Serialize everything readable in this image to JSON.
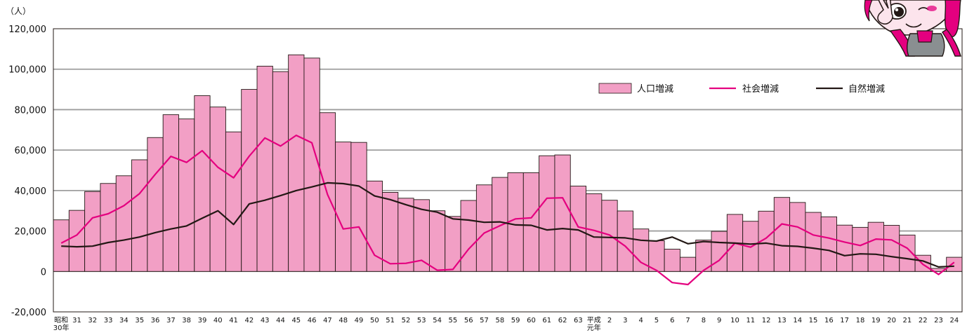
{
  "chart_data": {
    "type": "bar",
    "unit_label": "（人）",
    "y_ticks": [
      "120,000",
      "100,000",
      "80,000",
      "60,000",
      "40,000",
      "20,000",
      "0",
      "-20,000"
    ],
    "ylim": [
      -20000,
      120000
    ],
    "grid": true,
    "legend_position": "top-right",
    "categories": [
      [
        "昭和",
        "30年"
      ],
      [
        "31"
      ],
      [
        "32"
      ],
      [
        "33"
      ],
      [
        "34"
      ],
      [
        "35"
      ],
      [
        "36"
      ],
      [
        "37"
      ],
      [
        "38"
      ],
      [
        "39"
      ],
      [
        "40"
      ],
      [
        "41"
      ],
      [
        "42"
      ],
      [
        "43"
      ],
      [
        "44"
      ],
      [
        "45"
      ],
      [
        "46"
      ],
      [
        "47"
      ],
      [
        "48"
      ],
      [
        "49"
      ],
      [
        "50"
      ],
      [
        "51"
      ],
      [
        "52"
      ],
      [
        "53"
      ],
      [
        "54"
      ],
      [
        "55"
      ],
      [
        "56"
      ],
      [
        "57"
      ],
      [
        "58"
      ],
      [
        "59"
      ],
      [
        "60"
      ],
      [
        "61"
      ],
      [
        "62"
      ],
      [
        "63"
      ],
      [
        "平成",
        "元年"
      ],
      [
        "2"
      ],
      [
        "3"
      ],
      [
        "4"
      ],
      [
        "5"
      ],
      [
        "6"
      ],
      [
        "7"
      ],
      [
        "8"
      ],
      [
        "9"
      ],
      [
        "10"
      ],
      [
        "11"
      ],
      [
        "12"
      ],
      [
        "13"
      ],
      [
        "14"
      ],
      [
        "15"
      ],
      [
        "16"
      ],
      [
        "17"
      ],
      [
        "18"
      ],
      [
        "19"
      ],
      [
        "20"
      ],
      [
        "21"
      ],
      [
        "22"
      ],
      [
        "23"
      ],
      [
        "24"
      ]
    ],
    "series": [
      {
        "name": "人口増減",
        "kind": "bar",
        "color": "#f29fc5",
        "values": [
          25500,
          30200,
          39500,
          43500,
          47300,
          55200,
          66200,
          77500,
          75400,
          86900,
          81300,
          69000,
          90000,
          101500,
          98800,
          107100,
          105500,
          78500,
          64000,
          63800,
          44700,
          39100,
          36200,
          35500,
          30000,
          27200,
          35100,
          42800,
          46500,
          48800,
          48800,
          57200,
          57600,
          42200,
          38400,
          35200,
          29900,
          21000,
          15200,
          11000,
          7000,
          15500,
          19800,
          28200,
          24800,
          29800,
          36600,
          34100,
          29200,
          27000,
          22900,
          21800,
          24300,
          22800,
          18000,
          8000,
          1500,
          7000
        ]
      },
      {
        "name": "社会増減",
        "kind": "line",
        "color": "#e4007f",
        "values": [
          14000,
          18000,
          26500,
          28500,
          32500,
          38500,
          48000,
          56900,
          53900,
          59700,
          51500,
          46300,
          57000,
          66000,
          62000,
          67300,
          63600,
          38000,
          21000,
          22000,
          8000,
          3800,
          4000,
          5500,
          600,
          1000,
          11000,
          19000,
          22600,
          26000,
          26500,
          36200,
          36400,
          22000,
          20300,
          18000,
          12500,
          4500,
          500,
          -5500,
          -6500,
          500,
          5500,
          14000,
          12000,
          16500,
          23500,
          22000,
          18000,
          16500,
          14500,
          12800,
          16000,
          15600,
          11500,
          3500,
          -1500,
          4500
        ]
      },
      {
        "name": "自然増減",
        "kind": "line",
        "color": "#231815",
        "values": [
          12500,
          12200,
          12500,
          14300,
          15500,
          17000,
          19200,
          21000,
          22500,
          26300,
          30000,
          23200,
          33400,
          35200,
          37500,
          40000,
          41800,
          43800,
          43400,
          42200,
          37300,
          35500,
          33000,
          30700,
          29300,
          26000,
          25400,
          24300,
          24500,
          23000,
          22800,
          20500,
          21200,
          20500,
          17000,
          16800,
          16600,
          15400,
          15000,
          17000,
          13700,
          14800,
          14300,
          14000,
          13500,
          14000,
          12700,
          12400,
          11500,
          10400,
          7800,
          8700,
          8500,
          7300,
          6300,
          5200,
          2200,
          2600
        ]
      }
    ]
  }
}
